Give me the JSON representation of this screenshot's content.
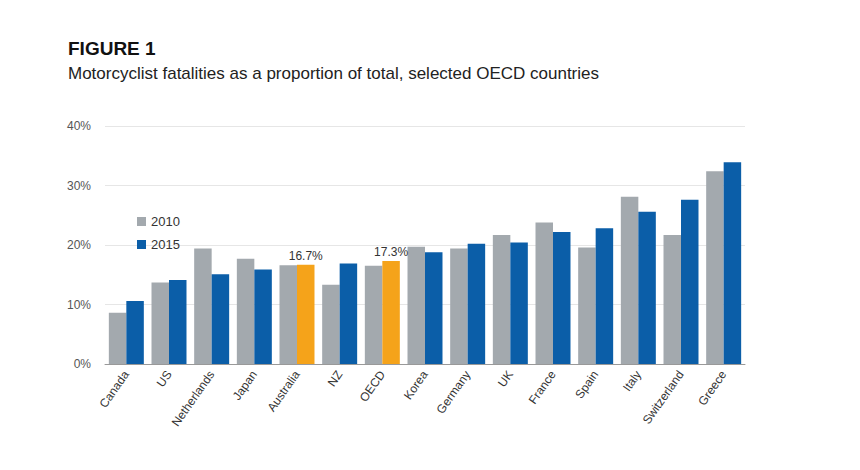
{
  "chart_data": {
    "type": "bar",
    "title": "FIGURE 1",
    "subtitle": "Motorcyclist fatalities as a proportion of total, selected OECD countries",
    "categories": [
      "Canada",
      "US",
      "Netherlands",
      "Japan",
      "Australia",
      "NZ",
      "OECD",
      "Korea",
      "Germany",
      "UK",
      "France",
      "Spain",
      "Italy",
      "Switzerland",
      "Greece"
    ],
    "series": [
      {
        "name": "2010",
        "color": "#a3a9ae",
        "values": [
          8.6,
          13.7,
          19.4,
          17.7,
          16.6,
          13.3,
          16.5,
          19.7,
          19.4,
          21.7,
          23.8,
          19.6,
          28.1,
          21.7,
          32.4
        ]
      },
      {
        "name": "2015",
        "color": "#0b5ea8",
        "colors": [
          "#0b5ea8",
          "#0b5ea8",
          "#0b5ea8",
          "#0b5ea8",
          "#f5a31a",
          "#0b5ea8",
          "#f5a31a",
          "#0b5ea8",
          "#0b5ea8",
          "#0b5ea8",
          "#0b5ea8",
          "#0b5ea8",
          "#0b5ea8",
          "#0b5ea8",
          "#0b5ea8"
        ],
        "values": [
          10.6,
          14.1,
          15.1,
          15.9,
          16.7,
          16.9,
          17.3,
          18.8,
          20.2,
          20.4,
          22.2,
          22.8,
          25.6,
          27.6,
          33.9
        ],
        "value_labels": [
          null,
          null,
          null,
          null,
          "16.7%",
          null,
          "17.3%",
          null,
          null,
          null,
          null,
          null,
          null,
          null,
          null
        ]
      }
    ],
    "ylim": [
      0,
      40
    ],
    "yticks": [
      {
        "value": 0,
        "label": "0%"
      },
      {
        "value": 10,
        "label": "10%"
      },
      {
        "value": 20,
        "label": "20%"
      },
      {
        "value": 30,
        "label": "30%"
      },
      {
        "value": 40,
        "label": "40%"
      }
    ],
    "grid": true,
    "legend": "upper left"
  }
}
